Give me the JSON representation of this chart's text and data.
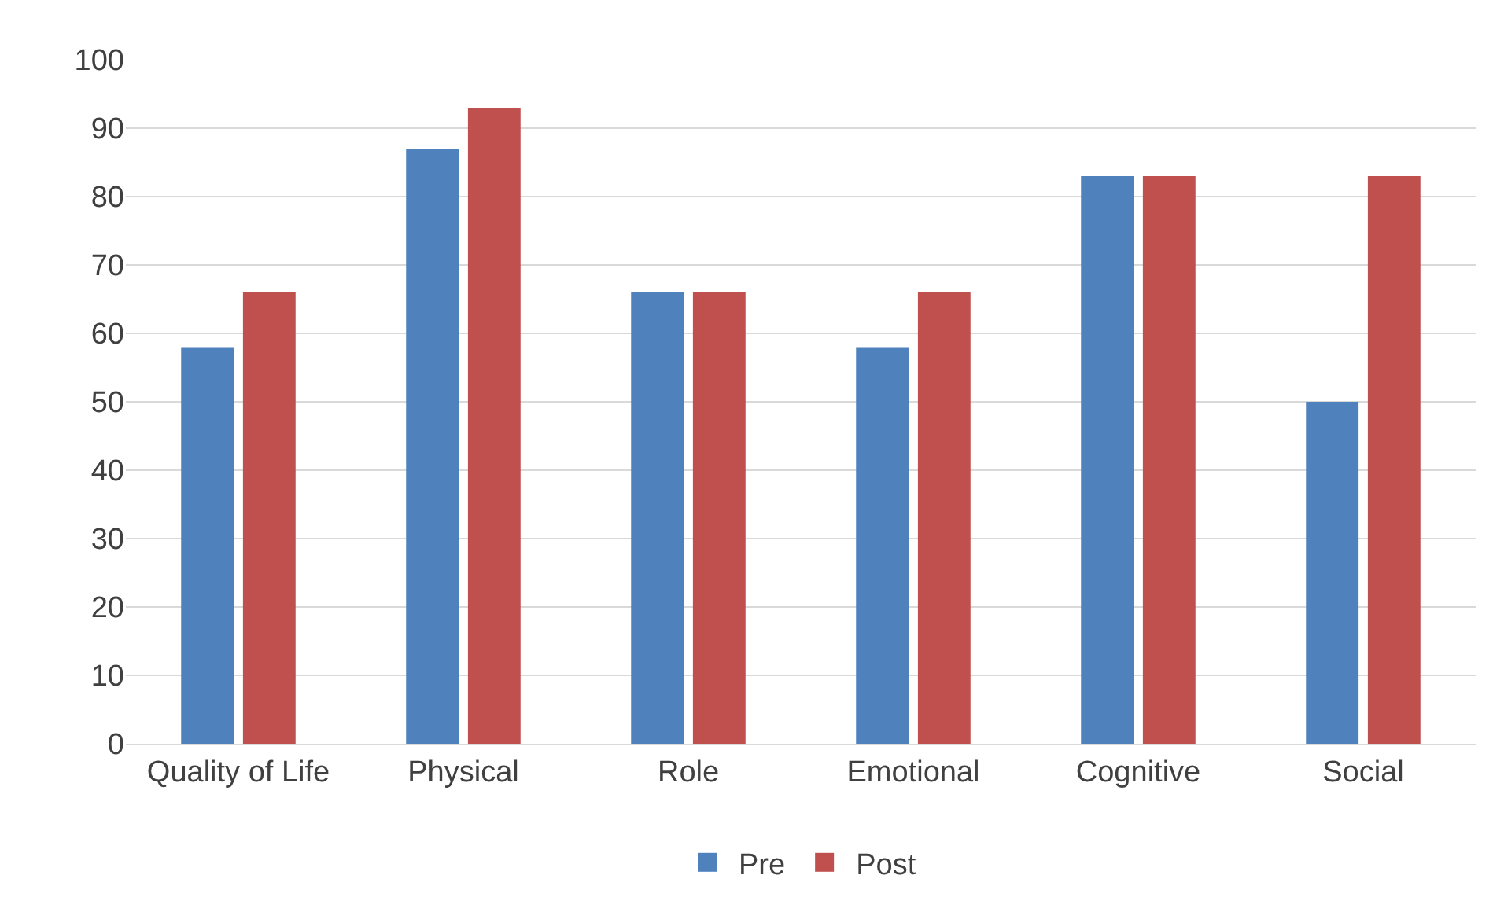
{
  "chart_data": {
    "type": "bar",
    "categories": [
      "Quality of Life",
      "Physical",
      "Role",
      "Emotional",
      "Cognitive",
      "Social"
    ],
    "series": [
      {
        "name": "Pre",
        "color": "#4f81bd",
        "values": [
          58,
          87,
          66,
          58,
          83,
          50
        ]
      },
      {
        "name": "Post",
        "color": "#c0504d",
        "values": [
          66,
          93,
          66,
          66,
          83,
          83
        ]
      }
    ],
    "ylim": [
      0,
      100
    ],
    "yticks": [
      0,
      10,
      20,
      30,
      40,
      50,
      60,
      70,
      80,
      90,
      100
    ],
    "grid": "y",
    "legend": "bottom"
  }
}
